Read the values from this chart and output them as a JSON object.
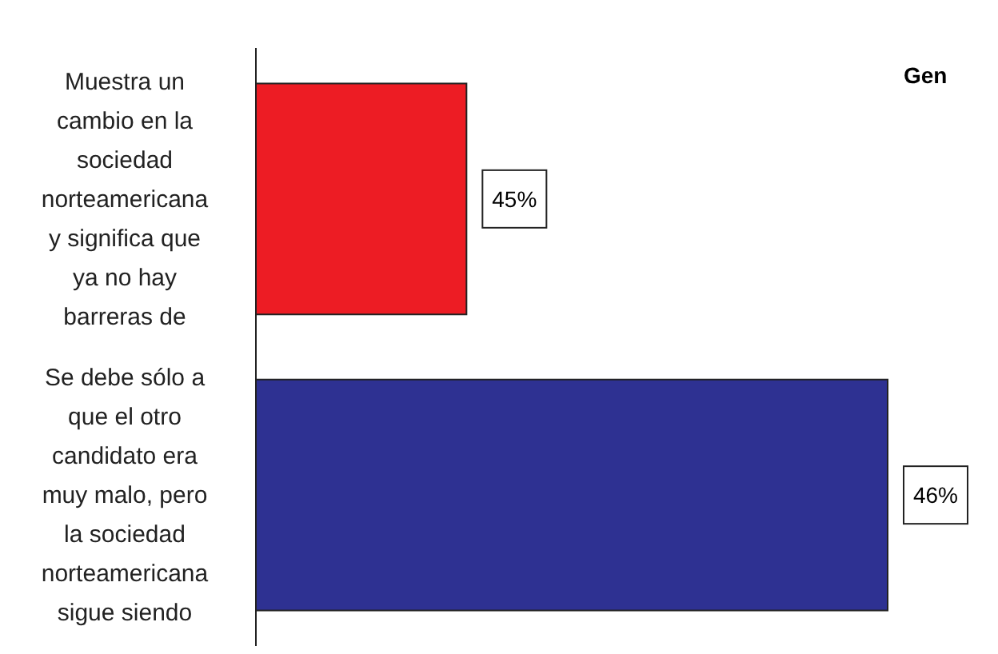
{
  "chart_data": {
    "type": "bar",
    "orientation": "horizontal",
    "title": "Gen",
    "categories": [
      "Muestra un cambio en la sociedad norteamericana y significa que ya no hay barreras de",
      "Se debe sólo a que el otro candidato era muy malo, pero la sociedad norteamericana sigue siendo"
    ],
    "values": [
      45,
      46
    ],
    "colors": [
      "#ed1c24",
      "#2e3192"
    ],
    "value_labels": [
      "45%",
      "46%"
    ],
    "xlim": [
      44.5,
      46
    ],
    "tick_labels": "y"
  }
}
